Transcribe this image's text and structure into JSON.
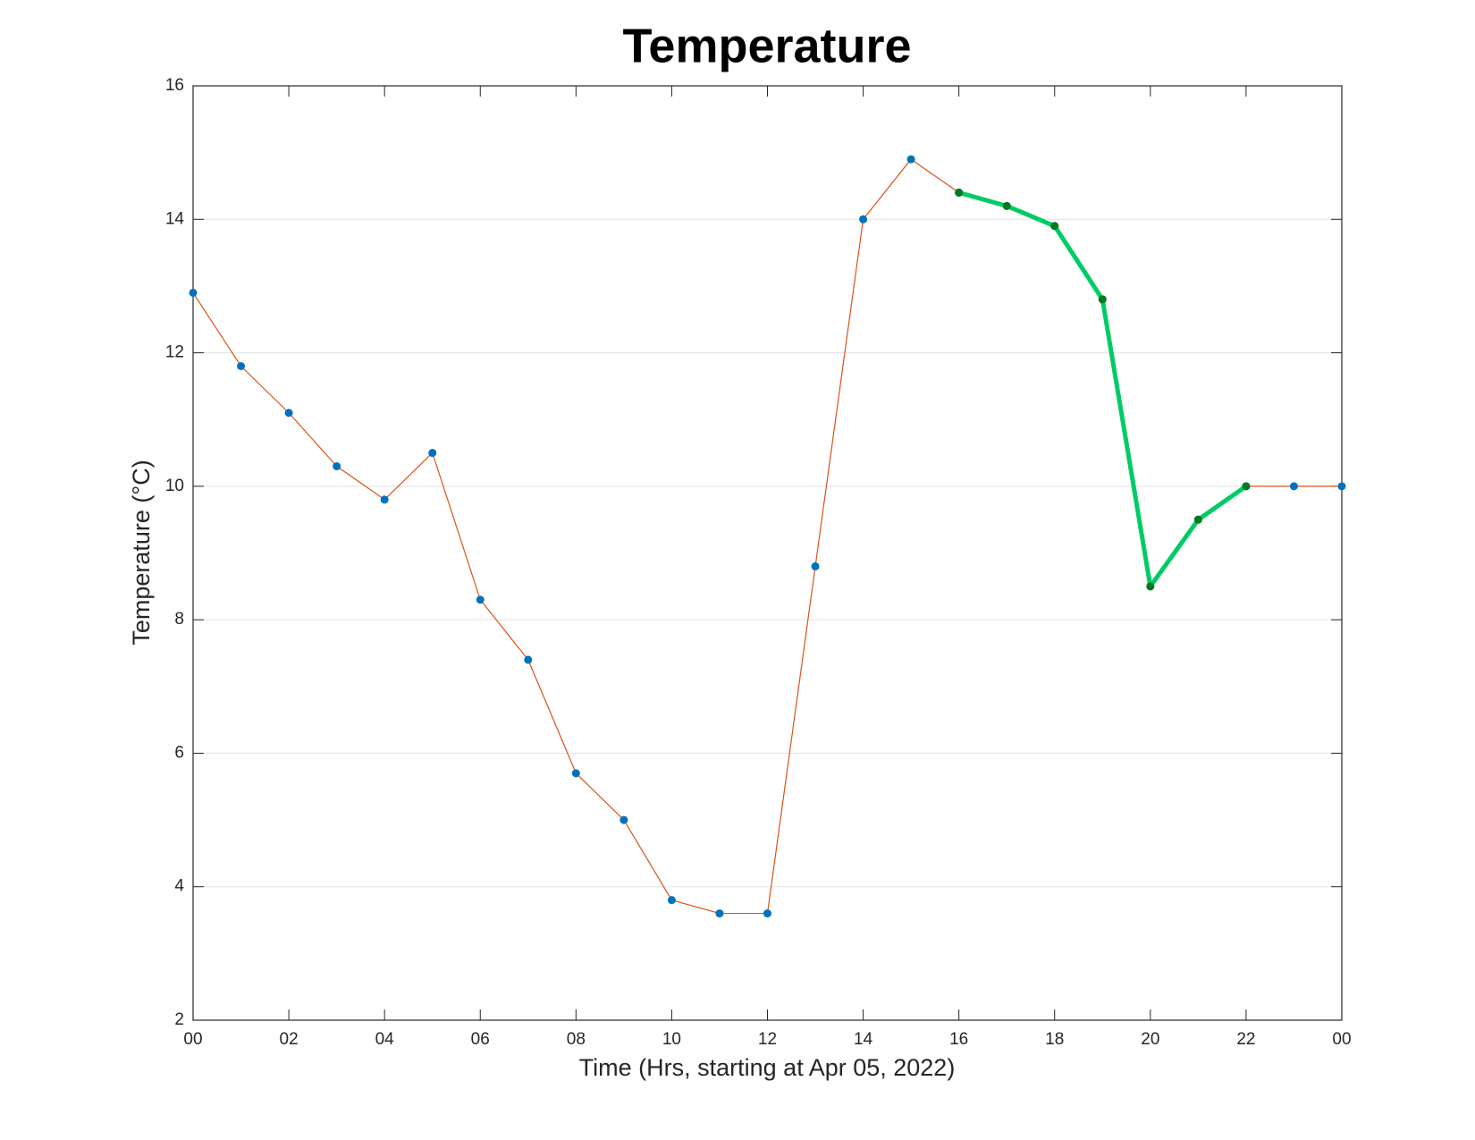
{
  "chart_data": {
    "type": "line",
    "title": "Temperature",
    "xlabel": "Time (Hrs, starting at Apr 05, 2022)",
    "ylabel": "Temperature (°C)",
    "xlim": [
      0,
      24
    ],
    "xticks": [
      {
        "value": 0,
        "label": "00"
      },
      {
        "value": 2,
        "label": "02"
      },
      {
        "value": 4,
        "label": "04"
      },
      {
        "value": 6,
        "label": "06"
      },
      {
        "value": 8,
        "label": "08"
      },
      10,
      12,
      14,
      16,
      18,
      20,
      22,
      {
        "value": 24,
        "label": "00"
      }
    ],
    "ylim": [
      2,
      16
    ],
    "yticks": [
      2,
      4,
      6,
      8,
      10,
      12,
      14,
      16
    ],
    "grid": true,
    "series": [
      {
        "color": "#d95319",
        "marker_color": "#0072bd",
        "line_width": 1.2,
        "x": [
          0,
          1,
          2,
          3,
          4,
          5,
          6,
          7,
          8,
          9,
          10,
          11,
          12,
          13,
          14,
          15,
          16,
          17,
          18,
          19,
          20,
          21,
          22,
          23,
          24
        ],
        "values": [
          12.9,
          11.8,
          11.1,
          10.3,
          9.8,
          10.5,
          8.3,
          7.4,
          5.7,
          5.0,
          3.8,
          3.6,
          3.6,
          8.8,
          14.0,
          14.9,
          14.4,
          14.2,
          13.9,
          12.8,
          8.5,
          9.5,
          10.0,
          10.0,
          10.0
        ]
      },
      {
        "color": "#00cc66",
        "marker_color": "#007a1f",
        "line_width": 5,
        "x": [
          16,
          17,
          18,
          19,
          20,
          21,
          22
        ],
        "values": [
          14.4,
          14.2,
          13.9,
          12.8,
          8.5,
          9.5,
          10.0
        ]
      }
    ]
  }
}
